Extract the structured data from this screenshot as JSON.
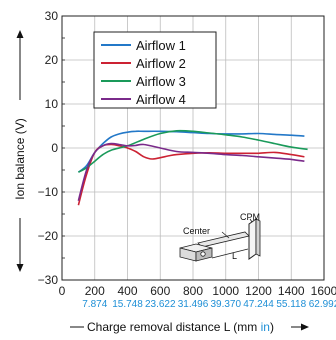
{
  "chart_data": {
    "type": "line",
    "xlabel_prefix": "Charge removal distance L (mm ",
    "xlabel_unit2": "in",
    "xlabel_suffix": ")",
    "ylabel": "Ion balance (V)",
    "xlim": [
      0,
      1600
    ],
    "ylim": [
      -30,
      30
    ],
    "x_ticks": [
      "0",
      "200",
      "400",
      "600",
      "800",
      "1000",
      "1200",
      "1400",
      "1600"
    ],
    "x_ticks_in": [
      "7.874",
      "15.748",
      "23.622",
      "31.496",
      "39.370",
      "47.244",
      "55.118",
      "62.992"
    ],
    "y_ticks": [
      "30",
      "20",
      "10",
      "0",
      "−10",
      "−20",
      "−30"
    ],
    "grid": true,
    "legend_position": "top-center",
    "series": [
      {
        "name": "Airflow 1",
        "color": "#2378c8",
        "x": [
          100,
          150,
          200,
          250,
          300,
          350,
          400,
          450,
          500,
          600,
          700,
          800,
          900,
          1000,
          1100,
          1200,
          1300,
          1400,
          1480
        ],
        "y": [
          -5.5,
          -4,
          -1,
          1,
          2.5,
          3.2,
          3.6,
          3.8,
          3.8,
          3.8,
          3.7,
          3.5,
          3.3,
          3.2,
          3.2,
          3.3,
          3.1,
          2.9,
          2.7
        ]
      },
      {
        "name": "Airflow 2",
        "color": "#cc2233",
        "x": [
          100,
          150,
          200,
          250,
          300,
          350,
          400,
          450,
          500,
          550,
          600,
          650,
          700,
          800,
          900,
          1000,
          1100,
          1200,
          1300,
          1400,
          1480
        ],
        "y": [
          -13,
          -6,
          -1,
          0.5,
          0.8,
          0.5,
          0,
          -0.8,
          -2,
          -2.5,
          -2.2,
          -1.8,
          -1.5,
          -1.2,
          -1.1,
          -1.2,
          -1.2,
          -1.2,
          -1,
          -1.5,
          -2
        ]
      },
      {
        "name": "Airflow 3",
        "color": "#1a9a5a",
        "x": [
          100,
          150,
          200,
          250,
          300,
          400,
          500,
          600,
          700,
          800,
          900,
          1000,
          1100,
          1200,
          1300,
          1400,
          1500
        ],
        "y": [
          -5.5,
          -4.5,
          -3,
          -1.5,
          -0.5,
          0.5,
          2,
          3.3,
          3.9,
          3.8,
          3.4,
          3.0,
          2.5,
          1.8,
          1.0,
          0.2,
          -0.3
        ]
      },
      {
        "name": "Airflow 4",
        "color": "#7a2a8a",
        "x": [
          100,
          150,
          200,
          250,
          300,
          350,
          400,
          450,
          500,
          600,
          700,
          800,
          900,
          1000,
          1100,
          1200,
          1300,
          1400,
          1480
        ],
        "y": [
          -12,
          -5,
          -1,
          0.5,
          1,
          0.8,
          0.5,
          0.6,
          0.8,
          0,
          -0.8,
          -1,
          -1.2,
          -1.5,
          -1.7,
          -2,
          -2.3,
          -2.6,
          -3
        ]
      }
    ],
    "inset": {
      "label_center": "Center",
      "label_cpm": "CPM",
      "label_L": "L"
    }
  }
}
